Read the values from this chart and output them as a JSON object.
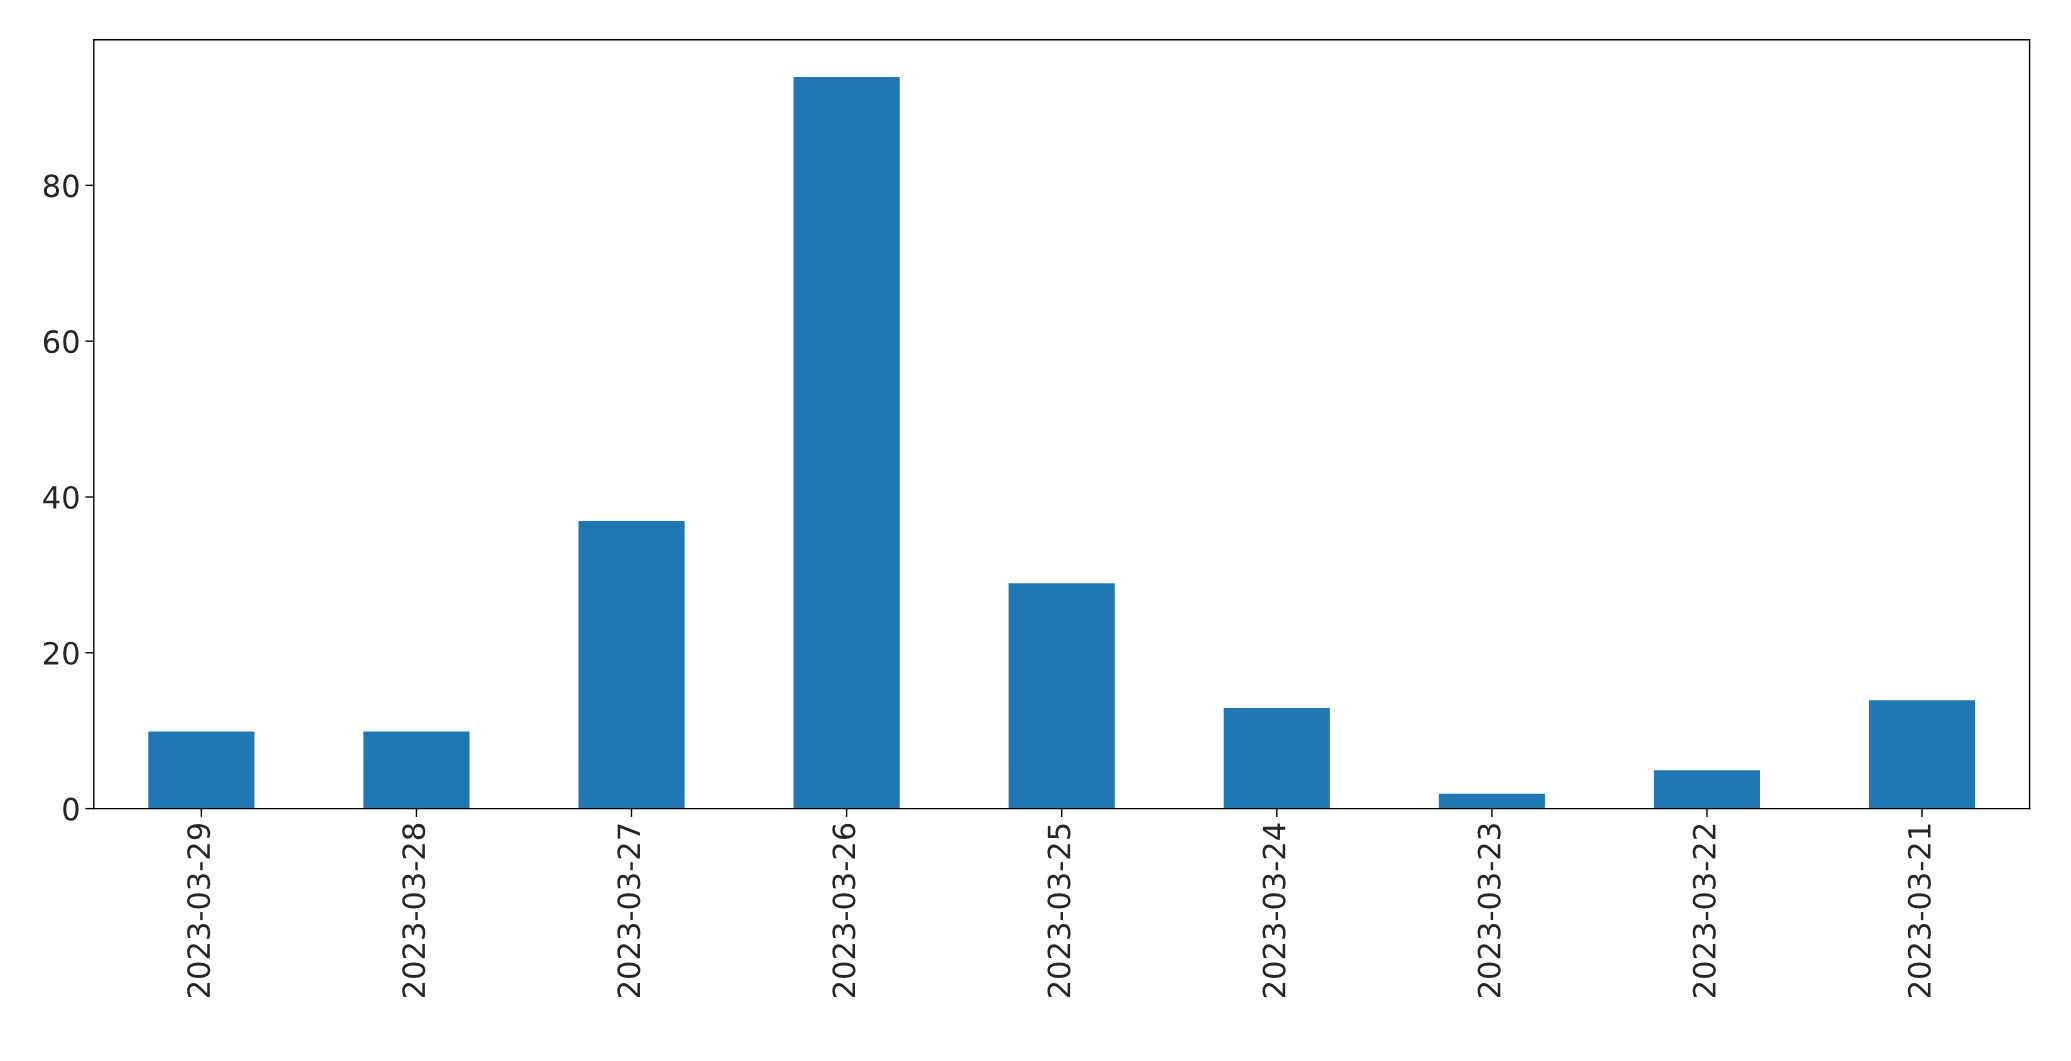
{
  "chart_data": {
    "type": "bar",
    "categories": [
      "2023-03-29",
      "2023-03-28",
      "2023-03-27",
      "2023-03-26",
      "2023-03-25",
      "2023-03-24",
      "2023-03-23",
      "2023-03-22",
      "2023-03-21"
    ],
    "values": [
      10,
      10,
      37,
      94,
      29,
      13,
      2,
      5,
      14
    ],
    "color": "#1f77b4",
    "ylim": [
      0,
      98.7
    ],
    "yticks": [
      0,
      20,
      40,
      60,
      80
    ],
    "grid": false,
    "legend": false
  }
}
